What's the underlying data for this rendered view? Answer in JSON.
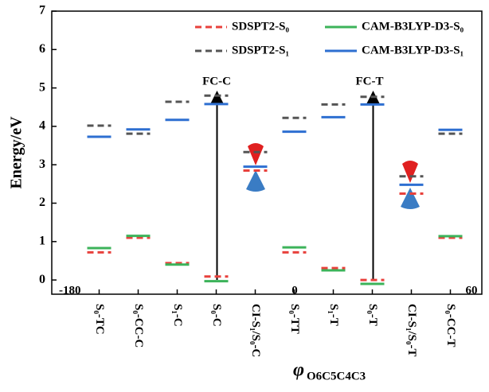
{
  "chart_data": {
    "type": "level",
    "ylabel": "Energy/eV",
    "xlabel": "φ",
    "xlabel_sub": "O6C5C4C3",
    "categories": [
      "S₀-TC",
      "S₀-CC-C",
      "S₁-C",
      "S₀-C",
      "CI-S₁/S₀-C",
      "S₀-TT",
      "S₁-T",
      "S₀-T",
      "CI-S₁/S₀-T",
      "S₀-CC-T"
    ],
    "series": [
      {
        "name": "SDSPT2-S₀",
        "color": "#e8413c",
        "dashed": true,
        "values": [
          0.72,
          1.1,
          0.44,
          0.09,
          2.85,
          0.72,
          0.31,
          0.0,
          2.25,
          1.1
        ]
      },
      {
        "name": "SDSPT2-S₁",
        "color": "#555555",
        "dashed": true,
        "values": [
          4.02,
          3.81,
          4.64,
          4.8,
          3.33,
          4.22,
          4.57,
          4.77,
          2.7,
          3.81
        ]
      },
      {
        "name": "CAM-B3LYP-D3-S₀",
        "color": "#3cb35a",
        "dashed": false,
        "values": [
          0.83,
          1.15,
          0.4,
          -0.03,
          null,
          0.85,
          0.25,
          -0.1,
          null,
          1.14
        ]
      },
      {
        "name": "CAM-B3LYP-D3-S₁",
        "color": "#2e6fd1",
        "dashed": false,
        "values": [
          3.73,
          3.92,
          4.17,
          4.58,
          2.95,
          3.86,
          4.24,
          4.57,
          2.48,
          3.91
        ]
      }
    ],
    "annotations": [
      "FC-C",
      "FC-T",
      "-180",
      "0",
      "60"
    ],
    "ylim": [
      -0.37,
      7
    ],
    "yticks": [
      0,
      1,
      2,
      3,
      4,
      5,
      6,
      7
    ]
  }
}
